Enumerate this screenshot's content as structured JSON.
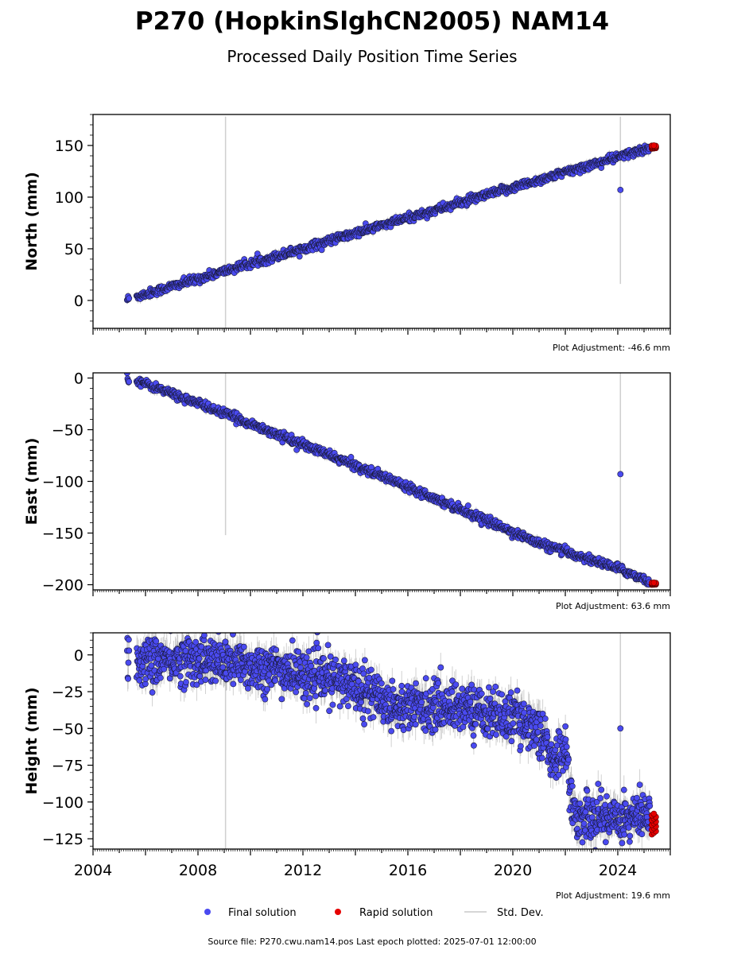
{
  "title": "P270 (HopkinSlghCN2005) NAM14",
  "subtitle": "Processed Daily Position Time Series",
  "footer": "Source file: P270.cwu.nam14.pos  Last epoch plotted: 2025-07-01 12:00:00",
  "legend": {
    "final": "Final solution",
    "rapid": "Rapid solution",
    "std": "Std. Dev."
  },
  "colors": {
    "final": "#4a4af0",
    "final_edge": "#1a1a3a",
    "rapid": "#e60000",
    "std": "#c8c8c8"
  },
  "chart_data": [
    {
      "type": "scatter",
      "ylabel": "North (mm)",
      "adjustment": "Plot Adjustment: -46.6 mm",
      "xlim": [
        2004.0,
        2026.0
      ],
      "ylim": [
        -27,
        180
      ],
      "yticks": [
        0,
        50,
        100,
        150
      ],
      "trend": [
        [
          2005.3,
          1
        ],
        [
          2025.4,
          149
        ]
      ],
      "scatter_sd": 2,
      "outliers": [
        {
          "x": 2024.1,
          "y": 107
        }
      ],
      "std_spikes": [
        {
          "x": 2009.05,
          "y0": -27,
          "y1": 178
        },
        {
          "x": 2024.1,
          "y0": 16,
          "y1": 178
        }
      ],
      "rapid": {
        "x0": 2025.25,
        "x1": 2025.5,
        "y0": 147,
        "y1": 150
      }
    },
    {
      "type": "scatter",
      "ylabel": "East (mm)",
      "adjustment": "Plot Adjustment: 63.6 mm",
      "xlim": [
        2004.0,
        2026.0
      ],
      "ylim": [
        -205,
        5
      ],
      "yticks": [
        0,
        -50,
        -100,
        -150,
        -200
      ],
      "trend": [
        [
          2005.3,
          1
        ],
        [
          2009.0,
          -34
        ],
        [
          2016.0,
          -105
        ],
        [
          2021.0,
          -160
        ],
        [
          2024.0,
          -184
        ],
        [
          2025.4,
          -199
        ]
      ],
      "scatter_sd": 2,
      "outliers": [
        {
          "x": 2024.1,
          "y": -93
        }
      ],
      "std_spikes": [
        {
          "x": 2009.05,
          "y0": -152,
          "y1": 5
        },
        {
          "x": 2024.1,
          "y0": -205,
          "y1": 5
        }
      ],
      "rapid": {
        "x0": 2025.25,
        "x1": 2025.5,
        "y0": -200,
        "y1": -198
      }
    },
    {
      "type": "scatter",
      "ylabel": "Height (mm)",
      "adjustment": "Plot Adjustment: 19.6 mm",
      "xlim": [
        2004.0,
        2026.0
      ],
      "ylim": [
        -132,
        15
      ],
      "yticks": [
        0,
        -25,
        -50,
        -75,
        -100,
        -125
      ],
      "xticks": [
        2004,
        2008,
        2012,
        2016,
        2020,
        2024
      ],
      "trend": [
        [
          2005.3,
          -5
        ],
        [
          2008.0,
          -3
        ],
        [
          2011.0,
          -10
        ],
        [
          2014.0,
          -20
        ],
        [
          2015.5,
          -35
        ],
        [
          2018.0,
          -35
        ],
        [
          2020.5,
          -45
        ],
        [
          2021.2,
          -55
        ],
        [
          2021.5,
          -75
        ],
        [
          2022.0,
          -60
        ],
        [
          2022.3,
          -110
        ],
        [
          2025.4,
          -110
        ]
      ],
      "scatter_sd": 8,
      "outliers": [
        {
          "x": 2024.1,
          "y": -50
        }
      ],
      "std_spikes": [
        {
          "x": 2009.05,
          "y0": -132,
          "y1": 15
        },
        {
          "x": 2024.1,
          "y0": -132,
          "y1": 15
        }
      ],
      "rapid": {
        "x0": 2025.25,
        "x1": 2025.5,
        "y0": -122,
        "y1": -108
      }
    }
  ]
}
